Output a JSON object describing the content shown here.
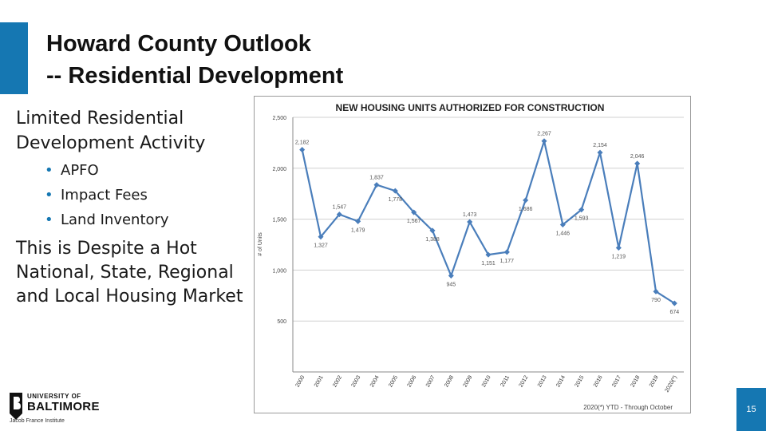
{
  "slide": {
    "title_line1": "Howard County Outlook",
    "title_line2": "-- Residential Development",
    "para1": "Limited Residential Development Activity",
    "bullets": [
      "APFO",
      "Impact Fees",
      "Land Inventory"
    ],
    "para2": "This is Despite a Hot National, State, Regional and Local Housing Market",
    "page_number": "15",
    "accent_color": "#1577b2"
  },
  "logo": {
    "line1": "UNIVERSITY OF",
    "line2": "BALTIMORE",
    "line3": "Jacob France Institute",
    "icon": "ub-logo-icon"
  },
  "chart_data": {
    "type": "line",
    "title": "NEW HOUSING UNITS AUTHORIZED FOR CONSTRUCTION",
    "ylabel": "# of Units",
    "xlabel": "",
    "footnote": "2020(*) YTD - Through October",
    "ylim": [
      0,
      2500
    ],
    "yticks": [
      500,
      1000,
      1500,
      2000,
      2500
    ],
    "ytick_labels": [
      "500",
      "1,000",
      "1,500",
      "2,000",
      "2,500"
    ],
    "grid": true,
    "categories": [
      "2000",
      "2001",
      "2002",
      "2003",
      "2004",
      "2005",
      "2006",
      "2007",
      "2008",
      "2009",
      "2010",
      "2011",
      "2012",
      "2013",
      "2014",
      "2015",
      "2016",
      "2017",
      "2018",
      "2019",
      "2020(*)"
    ],
    "values": [
      2182,
      1327,
      1547,
      1479,
      1837,
      1778,
      1567,
      1388,
      945,
      1473,
      1151,
      1177,
      1686,
      2267,
      1446,
      1593,
      2154,
      1219,
      2046,
      790,
      674
    ],
    "value_labels": [
      "2,182",
      "1,327",
      "1,547",
      "1,479",
      "1,837",
      "1,778",
      "1,567",
      "1,388",
      "945",
      "1,473",
      "1,151",
      "1,177",
      "1,686",
      "2,267",
      "1,446",
      "1,593",
      "2,154",
      "1,219",
      "2,046",
      "790",
      "674"
    ],
    "line_color": "#4a7ebb"
  }
}
